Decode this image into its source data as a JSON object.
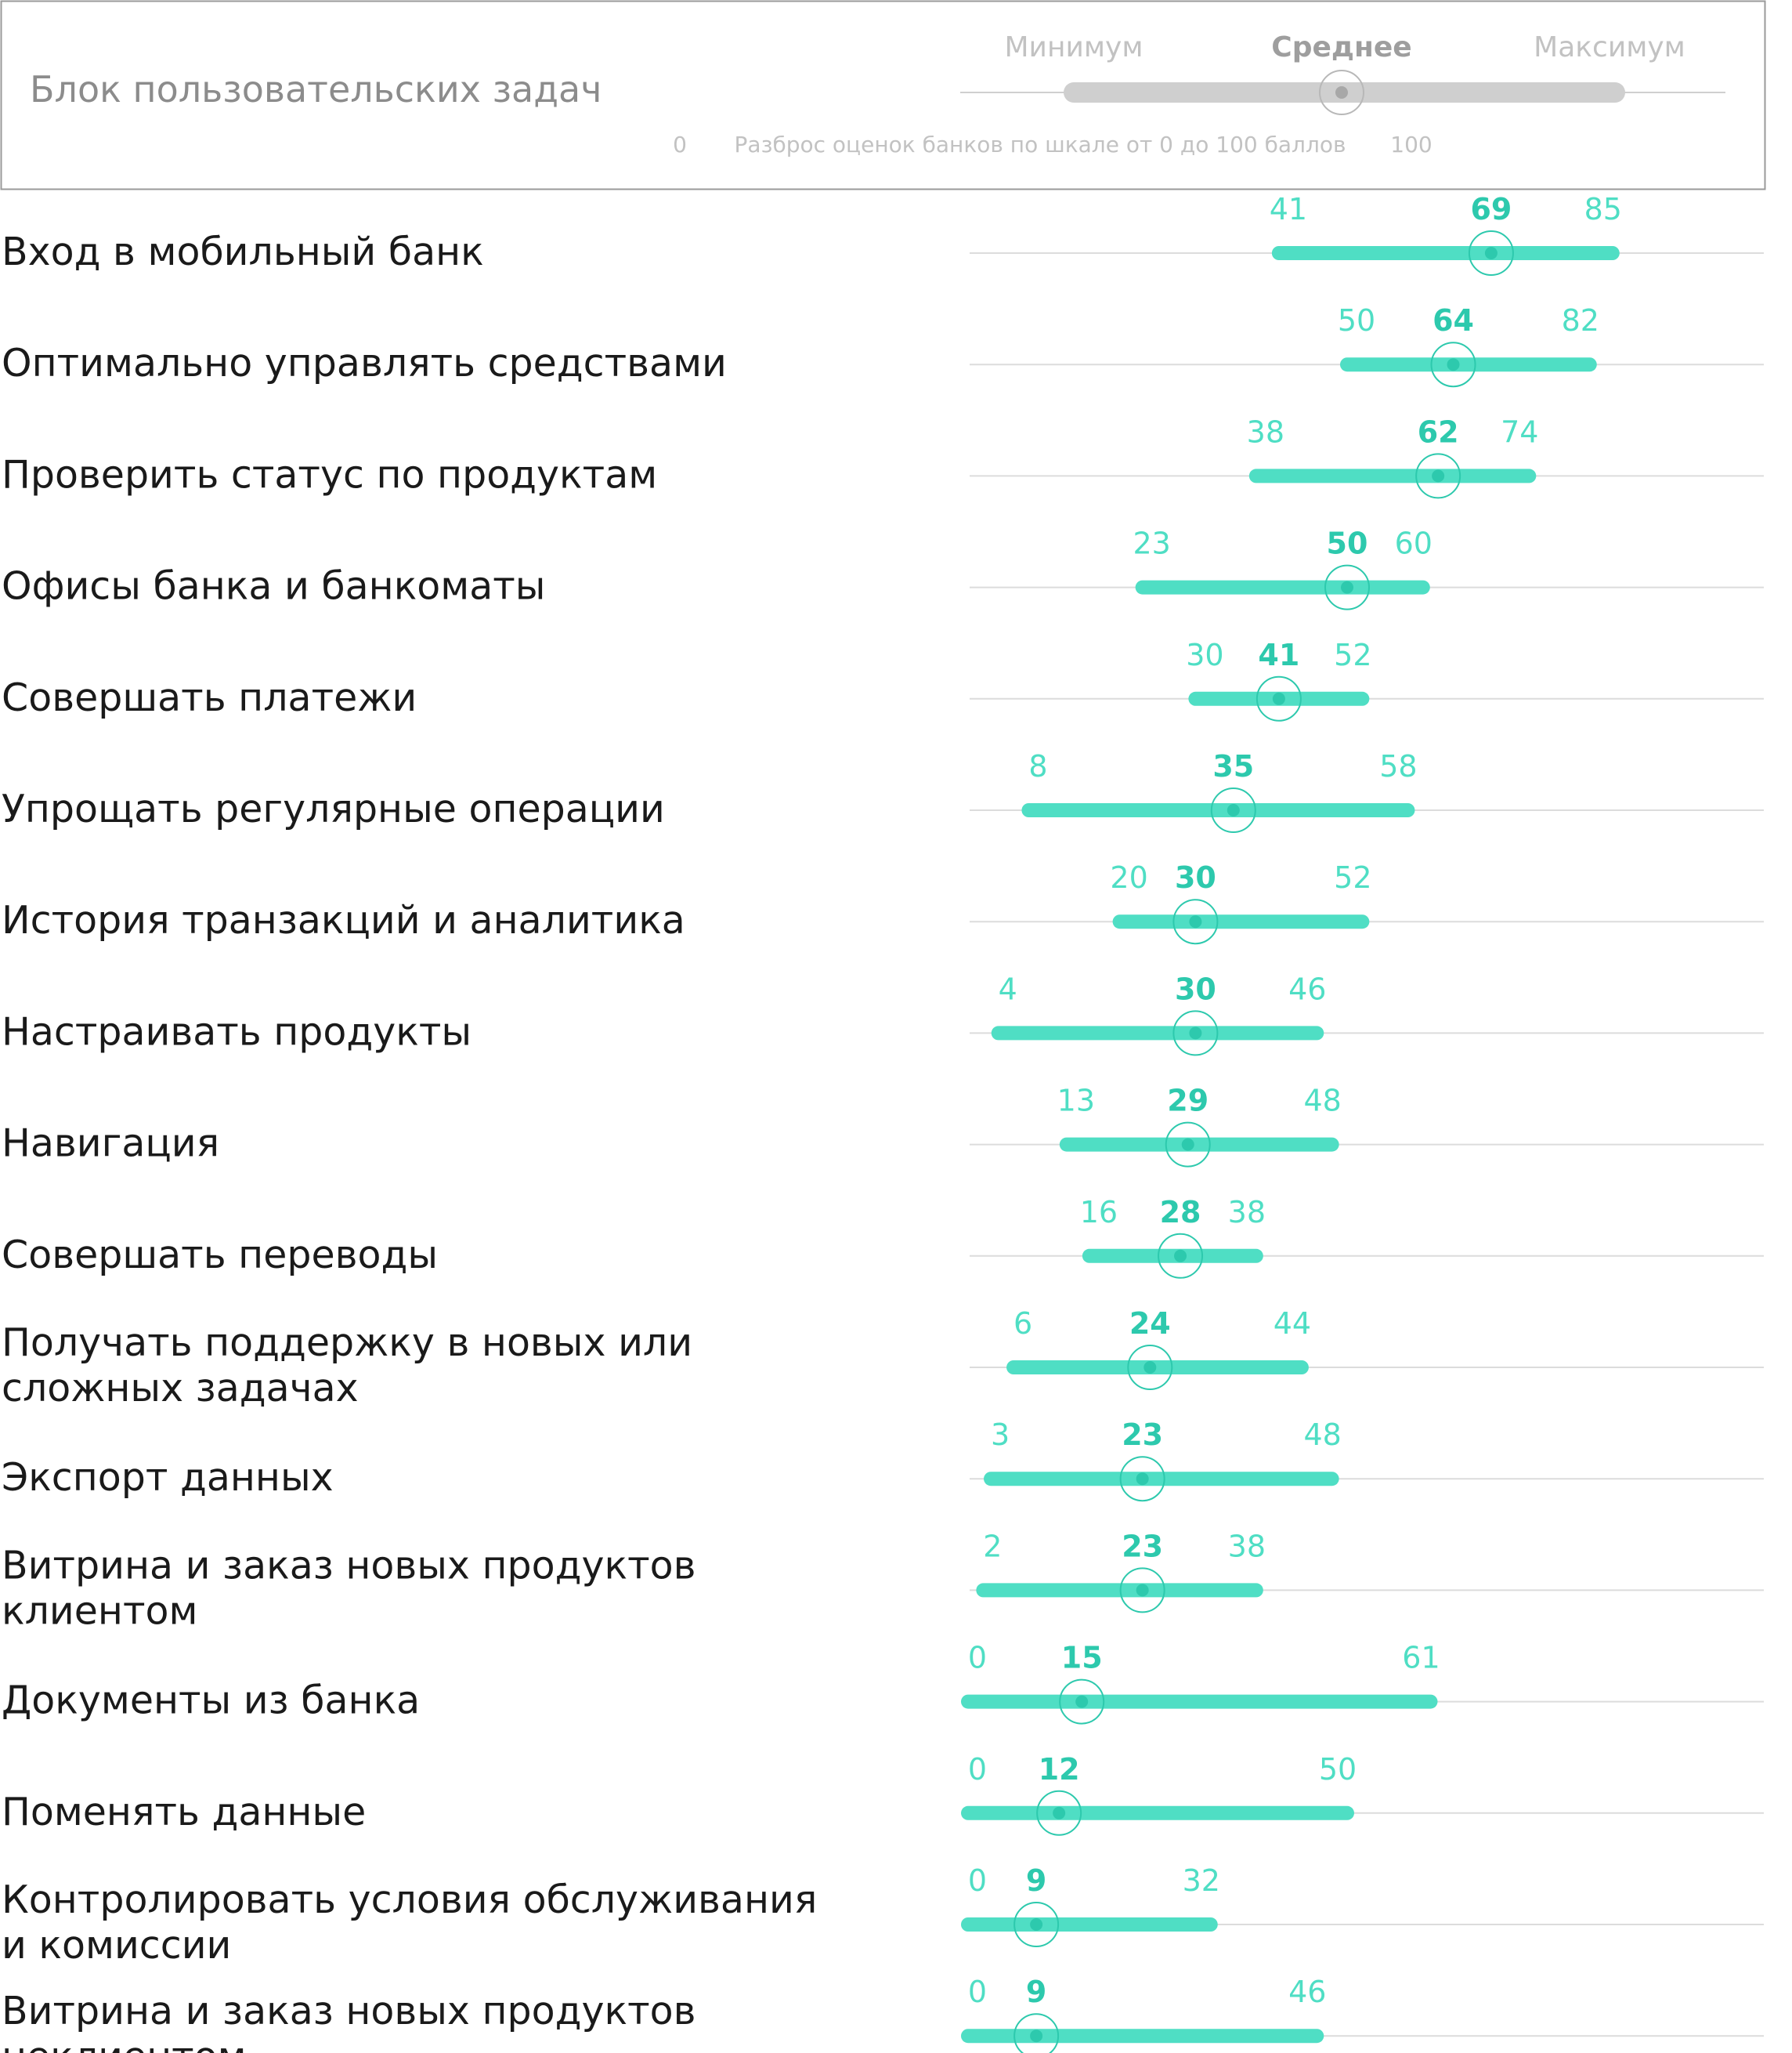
{
  "colors": {
    "accent": "#4fdec4",
    "accent_dark": "#2dc9ad",
    "legend_grey": "#cfcfcf",
    "legend_text": "#c2c2c2",
    "legend_mean_text": "#9e9e9e",
    "title_text": "#8c8c8c",
    "axis_line": "#dcdcdc",
    "label_text": "#1a1a1a",
    "border": "#9a9a9a"
  },
  "legend": {
    "title": "Блок пользовательских задач",
    "min_label": "Минимум",
    "mean_label": "Среднее",
    "max_label": "Максимум",
    "scale_min": "0",
    "scale_caption": "Разброс оценок банков по шкале от 0 до 100 баллов",
    "scale_max": "100"
  },
  "chart_data": {
    "type": "range",
    "xlim": [
      0,
      100
    ],
    "categories": [
      "Вход в мобильный банк",
      "Оптимально управлять средствами",
      "Проверить статус по продуктам",
      "Офисы банка и банкоматы",
      "Совершать платежи",
      "Упрощать регулярные операции",
      "История транзакций и аналитика",
      "Настраивать продукты",
      "Навигация",
      "Совершать переводы",
      "Получать поддержку в новых или сложных задачах",
      "Экспорт данных",
      "Витрина и заказ новых продуктов клиентом",
      "Документы из банка",
      "Поменять данные",
      "Контролировать условия обслуживания и комиссии",
      "Витрина и заказ новых продуктов неклиентом"
    ],
    "label_lines": [
      [
        "Вход в мобильный банк"
      ],
      [
        "Оптимально управлять средствами"
      ],
      [
        "Проверить статус по продуктам"
      ],
      [
        "Офисы банка и банкоматы"
      ],
      [
        "Совершать платежи"
      ],
      [
        "Упрощать регулярные операции"
      ],
      [
        "История транзакций и аналитика"
      ],
      [
        "Настраивать продукты"
      ],
      [
        "Навигация"
      ],
      [
        "Совершать переводы"
      ],
      [
        "Получать поддержку в новых или",
        "сложных задачах"
      ],
      [
        "Экспорт данных"
      ],
      [
        "Витрина и заказ новых продуктов",
        "клиентом"
      ],
      [
        "Документы из банка"
      ],
      [
        "Поменять данные"
      ],
      [
        "Контролировать условия обслуживания",
        "и комиссии"
      ],
      [
        "Витрина и заказ новых продуктов",
        "неклиентом"
      ]
    ],
    "series": [
      {
        "name": "Минимум",
        "values": [
          41,
          50,
          38,
          23,
          30,
          8,
          20,
          4,
          13,
          16,
          6,
          3,
          2,
          0,
          0,
          0,
          0
        ]
      },
      {
        "name": "Среднее",
        "values": [
          69,
          64,
          62,
          50,
          41,
          35,
          30,
          30,
          29,
          28,
          24,
          23,
          23,
          15,
          12,
          9,
          9
        ]
      },
      {
        "name": "Максимум",
        "values": [
          85,
          82,
          74,
          60,
          52,
          58,
          52,
          46,
          48,
          38,
          44,
          48,
          38,
          61,
          50,
          32,
          46
        ]
      }
    ]
  }
}
